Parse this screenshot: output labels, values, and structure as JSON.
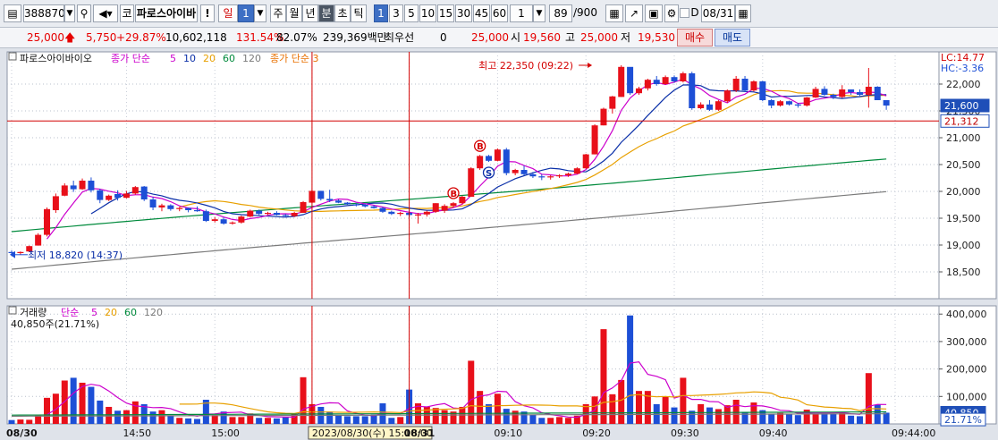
{
  "toolbar": {
    "code": "388870",
    "market_mark": "코",
    "stock_name": "파로스아이바",
    "warn_mark": "!",
    "period_day": "일",
    "period_count": "1",
    "tabs": [
      "주",
      "월",
      "년",
      "분",
      "초",
      "틱"
    ],
    "active_tab": "분",
    "intervals": [
      "1",
      "3",
      "5",
      "10",
      "15",
      "30",
      "45",
      "60"
    ],
    "active_interval": "1",
    "custom_interval": "1",
    "page_count": "89",
    "page_total": "/900",
    "date_checkbox_label": "D",
    "date": "08/31"
  },
  "quote": {
    "price": "25,000",
    "change": "5,750",
    "change_pct": "+29.87%",
    "volume": "10,602,118",
    "vol_ratio": "131.54%",
    "strength": "82.07%",
    "trade_value": "239,369백만",
    "priority_label": "최우선",
    "priority_value": "0",
    "ask": "25,000",
    "open_label": "시",
    "open": "19,560",
    "high_label": "고",
    "high": "25,000",
    "low_label": "저",
    "low": "19,530",
    "buy_label": "매수",
    "sell_label": "매도"
  },
  "chart_data": {
    "type": "candlestick",
    "price_legend": {
      "name": "파로스아이바이오",
      "ma_label": "종가 단순",
      "ma_periods": [
        "5",
        "10",
        "20",
        "60",
        "120"
      ],
      "ma_periods_colors": [
        "#cc00cc",
        "#0a2fa8",
        "#e8a000",
        "#008a3c",
        "#7a7a7a"
      ],
      "extra_label": "종가 단순 3"
    },
    "volume_legend": {
      "name": "거래량",
      "ma_label": "단순",
      "ma_periods": [
        "5",
        "20",
        "60",
        "120"
      ],
      "ma_periods_colors": [
        "#cc00cc",
        "#e8a000",
        "#008a3c",
        "#7a7a7a"
      ],
      "current": "40,850주(21.71%)"
    },
    "corner_labels": {
      "lc": "LC:14.77",
      "hc": "HC:-3.36"
    },
    "price_axis": {
      "ylim": [
        18000,
        22600
      ],
      "ticks": [
        18500,
        19000,
        19500,
        20000,
        20500,
        21000,
        21500,
        22000
      ],
      "tick_labels": [
        "18,500",
        "19,000",
        "19,500",
        "20,000",
        "20,500",
        "21,000",
        "21,500",
        "22,000"
      ]
    },
    "price_boxes": [
      {
        "label": "21,600",
        "value": 21600,
        "bg": "#1f4fb8",
        "fg": "#ffffff"
      },
      {
        "label": "21,312",
        "value": 21312,
        "bg": "#ffffff",
        "fg": "#c00000"
      }
    ],
    "volume_axis": {
      "ylim": [
        0,
        430000
      ],
      "ticks": [
        100000,
        200000,
        300000,
        400000
      ],
      "tick_labels": [
        "100,000",
        "200,000",
        "300,000",
        "400,000"
      ]
    },
    "volume_boxes": [
      {
        "label": "40,850",
        "value": 40850,
        "bg": "#1f4fb8",
        "fg": "#ffffff"
      },
      {
        "label": "21.71%",
        "value": 16000,
        "bg": "#ffffff",
        "fg": "#1f4fb8"
      }
    ],
    "annotations": {
      "high": {
        "label": "최고 22,350 (09:22)",
        "index": 66,
        "value": 22350
      },
      "low": {
        "label": "최저 18,820 (14:37)",
        "index": 1,
        "value": 18820
      }
    },
    "signals": [
      {
        "label": "B",
        "index": 50,
        "color": "#d40000"
      },
      {
        "label": "B",
        "index": 53,
        "color": "#d40000"
      },
      {
        "label": "S",
        "index": 54,
        "color": "#0a2fa8"
      }
    ],
    "hline": 21312,
    "x_labels": [
      {
        "label": "08/30",
        "index": 0,
        "bold": true
      },
      {
        "label": "14:50",
        "index": 13
      },
      {
        "label": "15:00",
        "index": 23
      },
      {
        "label": "2023/08/30(수) 15:10:00",
        "index": 34,
        "box": true
      },
      {
        "label": "08/31",
        "index": 45,
        "bold": true
      },
      {
        "label": "09:10",
        "index": 55
      },
      {
        "label": "09:20",
        "index": 65
      },
      {
        "label": "09:30",
        "index": 75
      },
      {
        "label": "09:40",
        "index": 85
      },
      {
        "label": "09:44:00",
        "index": 100
      }
    ],
    "vlines": [
      34,
      45
    ],
    "candles": [
      [
        18870,
        18900,
        18820,
        18850
      ],
      [
        18850,
        18880,
        18820,
        18870
      ],
      [
        18880,
        18990,
        18870,
        18980
      ],
      [
        18990,
        19220,
        18990,
        19190
      ],
      [
        19190,
        19700,
        19160,
        19670
      ],
      [
        19650,
        19960,
        19600,
        19910
      ],
      [
        19920,
        20150,
        19910,
        20110
      ],
      [
        20110,
        20200,
        19990,
        20040
      ],
      [
        20040,
        20240,
        20030,
        20200
      ],
      [
        20200,
        20260,
        19980,
        20020
      ],
      [
        20020,
        20050,
        19780,
        19840
      ],
      [
        19840,
        19940,
        19820,
        19920
      ],
      [
        19950,
        20020,
        19830,
        19880
      ],
      [
        19880,
        20010,
        19870,
        19960
      ],
      [
        19960,
        20100,
        19940,
        20080
      ],
      [
        20090,
        20100,
        19820,
        19850
      ],
      [
        19850,
        19900,
        19650,
        19700
      ],
      [
        19700,
        19770,
        19630,
        19740
      ],
      [
        19740,
        19760,
        19640,
        19670
      ],
      [
        19670,
        19710,
        19630,
        19690
      ],
      [
        19690,
        19700,
        19610,
        19650
      ],
      [
        19650,
        19720,
        19620,
        19630
      ],
      [
        19630,
        19660,
        19430,
        19450
      ],
      [
        19450,
        19520,
        19420,
        19480
      ],
      [
        19480,
        19520,
        19380,
        19400
      ],
      [
        19400,
        19440,
        19380,
        19420
      ],
      [
        19420,
        19550,
        19400,
        19530
      ],
      [
        19530,
        19660,
        19520,
        19640
      ],
      [
        19640,
        19660,
        19560,
        19580
      ],
      [
        19580,
        19620,
        19560,
        19600
      ],
      [
        19600,
        19630,
        19550,
        19560
      ],
      [
        19560,
        19580,
        19520,
        19540
      ],
      [
        19540,
        19620,
        19520,
        19600
      ],
      [
        19600,
        19820,
        19600,
        19800
      ],
      [
        19790,
        20030,
        19790,
        20010
      ],
      [
        20010,
        20010,
        19830,
        19860
      ],
      [
        19860,
        20030,
        19800,
        19830
      ],
      [
        19830,
        19850,
        19780,
        19790
      ],
      [
        19790,
        19800,
        19750,
        19760
      ],
      [
        19760,
        19780,
        19720,
        19750
      ],
      [
        19750,
        19770,
        19700,
        19720
      ],
      [
        19720,
        19740,
        19680,
        19690
      ],
      [
        19690,
        19710,
        19600,
        19620
      ],
      [
        19620,
        19640,
        19560,
        19580
      ],
      [
        19580,
        19620,
        19540,
        19600
      ],
      [
        19600,
        19650,
        19520,
        19560
      ],
      [
        19560,
        19600,
        19400,
        19570
      ],
      [
        19570,
        19640,
        19530,
        19620
      ],
      [
        19620,
        19780,
        19600,
        19780
      ],
      [
        19640,
        19760,
        19600,
        19730
      ],
      [
        19730,
        19800,
        19700,
        19780
      ],
      [
        19780,
        19920,
        19760,
        19900
      ],
      [
        19900,
        20450,
        19900,
        20430
      ],
      [
        20430,
        20680,
        20400,
        20660
      ],
      [
        20660,
        20680,
        20550,
        20570
      ],
      [
        20570,
        20800,
        20560,
        20780
      ],
      [
        20780,
        20810,
        20300,
        20340
      ],
      [
        20340,
        20420,
        20300,
        20400
      ],
      [
        20400,
        20480,
        20300,
        20320
      ],
      [
        20320,
        20360,
        20250,
        20280
      ],
      [
        20280,
        20320,
        20210,
        20260
      ],
      [
        20260,
        20300,
        20220,
        20280
      ],
      [
        20280,
        20320,
        20250,
        20300
      ],
      [
        20300,
        20350,
        20270,
        20330
      ],
      [
        20330,
        20450,
        20320,
        20430
      ],
      [
        20430,
        20700,
        20420,
        20690
      ],
      [
        20690,
        21250,
        20690,
        21230
      ],
      [
        21230,
        21560,
        21230,
        21540
      ],
      [
        21540,
        21780,
        21450,
        21770
      ],
      [
        21760,
        22350,
        21760,
        22320
      ],
      [
        22320,
        22300,
        21800,
        21830
      ],
      [
        21830,
        21950,
        21800,
        21920
      ],
      [
        21920,
        22100,
        21880,
        22080
      ],
      [
        22080,
        22150,
        21970,
        22000
      ],
      [
        22000,
        22160,
        21990,
        22130
      ],
      [
        22130,
        22160,
        22020,
        22050
      ],
      [
        22050,
        22230,
        22030,
        22200
      ],
      [
        22200,
        22230,
        21520,
        21550
      ],
      [
        21550,
        21660,
        21530,
        21620
      ],
      [
        21620,
        21700,
        21500,
        21520
      ],
      [
        21520,
        21700,
        21500,
        21680
      ],
      [
        21680,
        21900,
        21650,
        21880
      ],
      [
        21880,
        22150,
        21850,
        22100
      ],
      [
        22100,
        22150,
        21850,
        21880
      ],
      [
        21880,
        22070,
        21860,
        22050
      ],
      [
        22050,
        22060,
        21680,
        21700
      ],
      [
        21700,
        21720,
        21550,
        21600
      ],
      [
        21600,
        21700,
        21580,
        21680
      ],
      [
        21680,
        21690,
        21600,
        21620
      ],
      [
        21620,
        21650,
        21560,
        21600
      ],
      [
        21600,
        21760,
        21580,
        21750
      ],
      [
        21750,
        21950,
        21740,
        21910
      ],
      [
        21910,
        21960,
        21780,
        21800
      ],
      [
        21800,
        21820,
        21720,
        21760
      ],
      [
        21760,
        21980,
        21740,
        21900
      ],
      [
        21900,
        21900,
        21800,
        21850
      ],
      [
        21850,
        21900,
        21780,
        21800
      ],
      [
        21800,
        22300,
        21560,
        21950
      ],
      [
        21950,
        21960,
        21700,
        21700
      ],
      [
        21700,
        21700,
        21520,
        21600
      ]
    ],
    "volumes": [
      14000,
      16000,
      15000,
      30000,
      95000,
      110000,
      158000,
      168000,
      150000,
      135000,
      85000,
      62000,
      48000,
      50000,
      82000,
      72000,
      45000,
      50000,
      30000,
      22000,
      20000,
      18000,
      88000,
      32000,
      45000,
      25000,
      25000,
      38000,
      22000,
      22000,
      20000,
      24000,
      35000,
      170000,
      72000,
      62000,
      45000,
      30000,
      28000,
      28000,
      28000,
      34000,
      75000,
      22000,
      25000,
      125000,
      75000,
      62000,
      58000,
      50000,
      45000,
      62000,
      230000,
      120000,
      72000,
      110000,
      55000,
      48000,
      45000,
      34000,
      22000,
      22000,
      25000,
      22000,
      30000,
      72000,
      100000,
      345000,
      108000,
      160000,
      395000,
      120000,
      120000,
      72000,
      98000,
      60000,
      168000,
      48000,
      72000,
      60000,
      54000,
      68000,
      88000,
      44000,
      78000,
      50000,
      36000,
      40000,
      36000,
      32000,
      52000,
      38000,
      40000,
      36000,
      42000,
      30000,
      28000,
      185000,
      70000,
      40850
    ]
  }
}
